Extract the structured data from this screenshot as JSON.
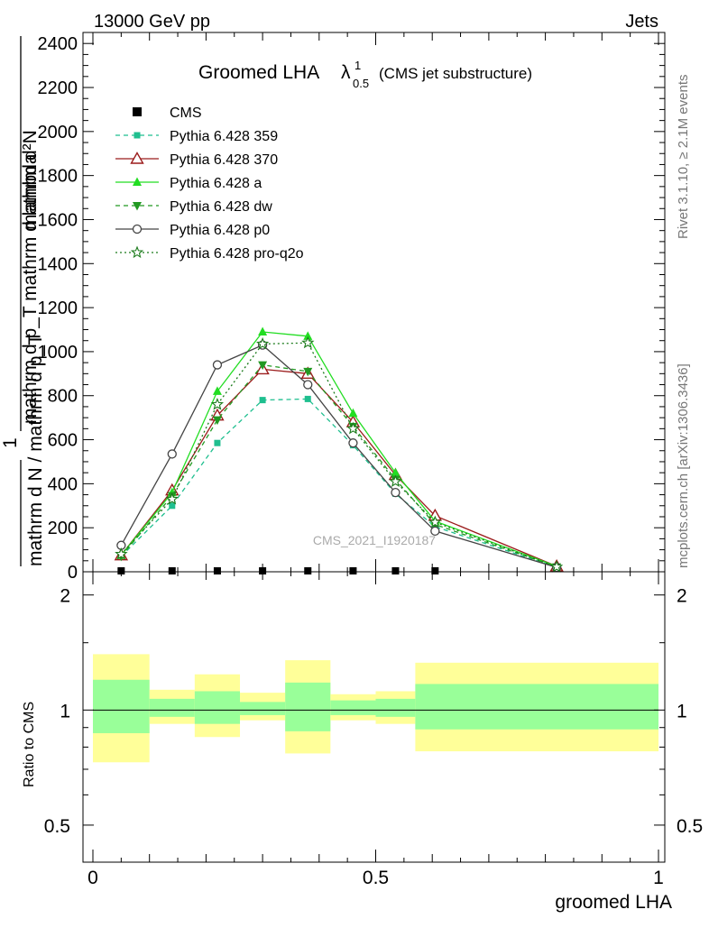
{
  "header": {
    "left": "13000 GeV pp",
    "right": "Jets"
  },
  "side_labels": {
    "rivet": "Rivet 3.1.10, ≥ 2.1M events",
    "mcplots": "mcplots.cern.ch [arXiv:1306.3436]"
  },
  "watermark": "CMS_2021_I1920187",
  "chart_data": [
    {
      "type": "line",
      "title_main": "Groomed LHA",
      "title_lambda": "λ",
      "title_sup": "1",
      "title_sub": "0.5",
      "title_note": "(CMS jet substructure)",
      "ylabel_top": "mathrm d²N",
      "ylabel_top2": "mathrm d p_T mathrm d lambda",
      "ylabel_one": "1",
      "ylabel_bottom": "mathrm d N / mathrm d p_T",
      "xlim": [
        0,
        1
      ],
      "ylim": [
        0,
        2450
      ],
      "yticks": [
        0,
        200,
        400,
        600,
        800,
        1000,
        1200,
        1400,
        1600,
        1800,
        2000,
        2200,
        2400
      ],
      "ytick_labels": [
        "0",
        "200",
        "400",
        "600",
        "800",
        "1000",
        "1200",
        "1400",
        "1600",
        "1800",
        "2000",
        "2200",
        "2400"
      ],
      "series": [
        {
          "name": "CMS",
          "color": "#000000",
          "dash": "",
          "marker": "square",
          "x": [
            0.05,
            0.14,
            0.22,
            0.3,
            0.38,
            0.46,
            0.535,
            0.605
          ],
          "y": [
            0,
            0,
            0,
            0,
            0,
            0,
            0,
            0
          ]
        },
        {
          "name": "Pythia 6.428 359",
          "color": "#1fbf8f",
          "dash": "5,4",
          "marker": "smallsquare",
          "x": [
            0.05,
            0.14,
            0.22,
            0.3,
            0.38,
            0.46,
            0.535,
            0.605,
            0.82
          ],
          "y": [
            70,
            300,
            585,
            780,
            785,
            575,
            355,
            205,
            20
          ]
        },
        {
          "name": "Pythia 6.428 370",
          "color": "#9b1c1c",
          "dash": "",
          "marker": "opentriangle",
          "x": [
            0.05,
            0.14,
            0.22,
            0.3,
            0.38,
            0.46,
            0.535,
            0.605,
            0.82
          ],
          "y": [
            75,
            370,
            710,
            920,
            900,
            680,
            440,
            255,
            25
          ]
        },
        {
          "name": "Pythia 6.428 a",
          "color": "#22dd22",
          "dash": "",
          "marker": "triangle",
          "x": [
            0.05,
            0.14,
            0.22,
            0.3,
            0.38,
            0.46,
            0.535,
            0.605,
            0.82
          ],
          "y": [
            75,
            360,
            820,
            1090,
            1070,
            720,
            450,
            230,
            25
          ]
        },
        {
          "name": "Pythia 6.428 dw",
          "color": "#229922",
          "dash": "5,4",
          "marker": "downtriangle",
          "x": [
            0.05,
            0.14,
            0.22,
            0.3,
            0.38,
            0.46,
            0.535,
            0.605,
            0.82
          ],
          "y": [
            70,
            345,
            690,
            940,
            910,
            660,
            420,
            215,
            22
          ]
        },
        {
          "name": "Pythia 6.428 p0",
          "color": "#444444",
          "dash": "",
          "marker": "opencircle",
          "x": [
            0.05,
            0.14,
            0.22,
            0.3,
            0.38,
            0.46,
            0.535,
            0.605,
            0.82
          ],
          "y": [
            120,
            535,
            940,
            1030,
            850,
            585,
            360,
            185,
            20
          ]
        },
        {
          "name": "Pythia 6.428 pro-q2o",
          "color": "#1a7a1a",
          "dash": "2,3",
          "marker": "star",
          "x": [
            0.05,
            0.14,
            0.22,
            0.3,
            0.38,
            0.46,
            0.535,
            0.605,
            0.82
          ],
          "y": [
            80,
            330,
            760,
            1035,
            1040,
            650,
            410,
            225,
            22
          ]
        }
      ]
    },
    {
      "type": "area",
      "ylabel": "Ratio to CMS",
      "xlabel": "groomed LHA",
      "xlim": [
        0,
        1
      ],
      "ylim": [
        0.4,
        2.3
      ],
      "yscale": "log",
      "xticks": [
        0,
        0.5,
        1
      ],
      "xtick_labels": [
        "0",
        "0.5",
        "1"
      ],
      "yticks": [
        0.5,
        1,
        2
      ],
      "ytick_labels": [
        "0.5",
        "1",
        "2"
      ],
      "bands": [
        {
          "x0": 0.0,
          "x1": 0.1,
          "yellow": [
            0.73,
            1.4
          ],
          "green": [
            0.87,
            1.2
          ]
        },
        {
          "x0": 0.1,
          "x1": 0.18,
          "yellow": [
            0.92,
            1.13
          ],
          "green": [
            0.96,
            1.07
          ]
        },
        {
          "x0": 0.18,
          "x1": 0.26,
          "yellow": [
            0.85,
            1.24
          ],
          "green": [
            0.92,
            1.12
          ]
        },
        {
          "x0": 0.26,
          "x1": 0.34,
          "yellow": [
            0.94,
            1.11
          ],
          "green": [
            0.97,
            1.05
          ]
        },
        {
          "x0": 0.34,
          "x1": 0.42,
          "yellow": [
            0.77,
            1.35
          ],
          "green": [
            0.88,
            1.18
          ]
        },
        {
          "x0": 0.42,
          "x1": 0.5,
          "yellow": [
            0.94,
            1.1
          ],
          "green": [
            0.97,
            1.06
          ]
        },
        {
          "x0": 0.5,
          "x1": 0.57,
          "yellow": [
            0.92,
            1.12
          ],
          "green": [
            0.96,
            1.07
          ]
        },
        {
          "x0": 0.57,
          "x1": 1.0,
          "yellow": [
            0.78,
            1.33
          ],
          "green": [
            0.89,
            1.17
          ]
        }
      ],
      "colors": {
        "yellow": "#ffff99",
        "green": "#99ff99"
      }
    }
  ]
}
